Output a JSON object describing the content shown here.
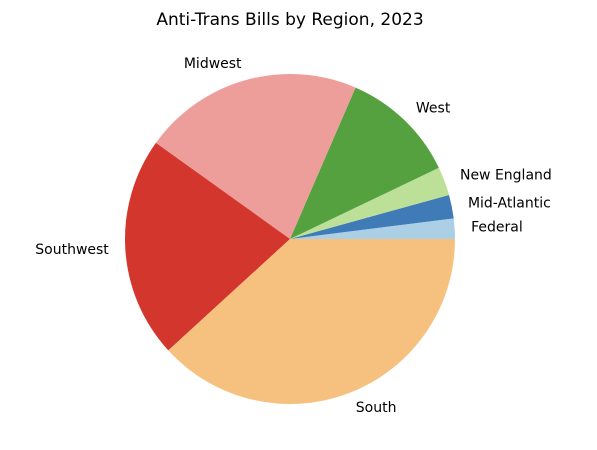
{
  "chart_data": {
    "type": "pie",
    "title": "Anti-Trans Bills by Region, 2023",
    "start_angle_deg": 0,
    "direction": "counterclockwise",
    "slices": [
      {
        "label": "Federal",
        "value": 2.0,
        "color": "#abd0e6"
      },
      {
        "label": "Mid-Atlantic",
        "value": 2.3,
        "color": "#3f7cb7"
      },
      {
        "label": "New England",
        "value": 2.8,
        "color": "#bce097"
      },
      {
        "label": "West",
        "value": 11.4,
        "color": "#55a13f"
      },
      {
        "label": "Midwest",
        "value": 21.6,
        "color": "#ee9e9a"
      },
      {
        "label": "Southwest",
        "value": 21.7,
        "color": "#d3362c"
      },
      {
        "label": "South",
        "value": 38.2,
        "color": "#f6c17e"
      }
    ]
  }
}
